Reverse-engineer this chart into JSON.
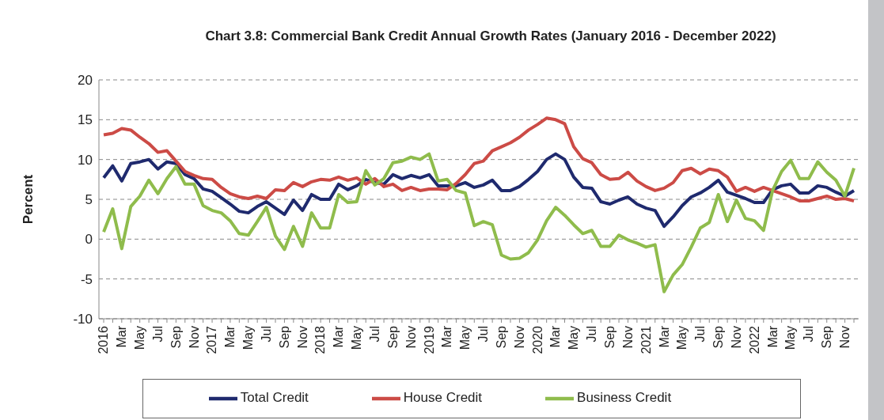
{
  "chart_data": {
    "type": "line",
    "title": "Chart 3.8: Commercial Bank Credit Annual Growth Rates (January 2016 - December 2022)",
    "ylabel": "Percent",
    "categories": [
      "2016",
      null,
      "Mar",
      null,
      "May",
      null,
      "Jul",
      null,
      "Sep",
      null,
      "Nov",
      null,
      "2017",
      null,
      "Mar",
      null,
      "May",
      null,
      "Jul",
      null,
      "Sep",
      null,
      "Nov",
      null,
      "2018",
      null,
      "Mar",
      null,
      "May",
      null,
      "Jul",
      null,
      "Sep",
      null,
      "Nov",
      null,
      "2019",
      null,
      "Mar",
      null,
      "May",
      null,
      "Jul",
      null,
      "Sep",
      null,
      "Nov",
      null,
      "2020",
      null,
      "Mar",
      null,
      "May",
      null,
      "Jul",
      null,
      "Sep",
      null,
      "Nov",
      null,
      "2021",
      null,
      "Mar",
      null,
      "May",
      null,
      "Jul",
      null,
      "Sep",
      null,
      "Nov",
      null,
      "2022",
      null,
      "Mar",
      null,
      "May",
      null,
      "Jul",
      null,
      "Sep",
      null,
      "Nov",
      null
    ],
    "series": [
      {
        "name": "Total Credit",
        "color": "#1f2a6e",
        "values": [
          7.7,
          9.2,
          7.3,
          9.5,
          9.7,
          10.0,
          8.8,
          9.7,
          9.5,
          8.1,
          7.6,
          6.3,
          6.0,
          5.2,
          4.4,
          3.5,
          3.3,
          4.1,
          4.7,
          3.9,
          3.1,
          4.9,
          3.6,
          5.6,
          5.0,
          5.0,
          6.9,
          6.2,
          6.7,
          7.5,
          7.1,
          6.9,
          8.1,
          7.6,
          8.0,
          7.7,
          8.1,
          6.7,
          6.7,
          6.7,
          7.1,
          6.5,
          6.8,
          7.4,
          6.1,
          6.1,
          6.6,
          7.5,
          8.5,
          10.0,
          10.7,
          10.0,
          7.8,
          6.5,
          6.4,
          4.7,
          4.4,
          4.9,
          5.3,
          4.4,
          3.9,
          3.6,
          1.6,
          2.8,
          4.2,
          5.3,
          5.8,
          6.5,
          7.4,
          5.9,
          5.5,
          5.1,
          4.6,
          4.6,
          6.2,
          6.7,
          6.9,
          5.8,
          5.8,
          6.7,
          6.5,
          5.9,
          5.4,
          6.1
        ]
      },
      {
        "name": "House Credit",
        "color": "#cc4b46",
        "values": [
          13.1,
          13.3,
          13.9,
          13.7,
          12.8,
          12.0,
          10.9,
          11.1,
          9.8,
          8.5,
          8.0,
          7.6,
          7.5,
          6.5,
          5.7,
          5.3,
          5.1,
          5.4,
          5.1,
          6.2,
          6.1,
          7.1,
          6.6,
          7.2,
          7.5,
          7.4,
          7.8,
          7.4,
          7.7,
          6.9,
          7.6,
          6.6,
          6.9,
          6.1,
          6.5,
          6.1,
          6.3,
          6.3,
          6.2,
          7.0,
          8.1,
          9.5,
          9.8,
          11.1,
          11.6,
          12.1,
          12.8,
          13.7,
          14.4,
          15.2,
          15.0,
          14.5,
          11.6,
          10.1,
          9.6,
          8.1,
          7.5,
          7.6,
          8.4,
          7.3,
          6.6,
          6.1,
          6.4,
          7.1,
          8.6,
          8.9,
          8.2,
          8.8,
          8.6,
          7.8,
          6.0,
          6.5,
          6.0,
          6.5,
          6.1,
          5.7,
          5.3,
          4.8,
          4.8,
          5.1,
          5.4,
          5.0,
          5.1,
          4.8
        ]
      },
      {
        "name": "Business Credit",
        "color": "#8fbc4c",
        "values": [
          0.9,
          3.8,
          -1.2,
          4.1,
          5.4,
          7.4,
          5.7,
          7.6,
          9.1,
          6.9,
          6.9,
          4.2,
          3.6,
          3.3,
          2.3,
          0.7,
          0.5,
          2.2,
          4.0,
          0.4,
          -1.3,
          1.6,
          -0.9,
          3.3,
          1.4,
          1.4,
          5.6,
          4.6,
          4.7,
          8.6,
          6.8,
          7.6,
          9.6,
          9.8,
          10.3,
          10.0,
          10.7,
          7.3,
          7.5,
          6.1,
          5.8,
          1.7,
          2.2,
          1.8,
          -2.0,
          -2.5,
          -2.4,
          -1.7,
          -0.1,
          2.3,
          4.0,
          3.0,
          1.8,
          0.7,
          1.1,
          -0.9,
          -0.9,
          0.5,
          -0.1,
          -0.5,
          -1.0,
          -0.7,
          -6.6,
          -4.5,
          -3.2,
          -1.0,
          1.4,
          2.1,
          5.6,
          2.2,
          4.9,
          2.6,
          2.3,
          1.1,
          6.1,
          8.5,
          9.9,
          7.6,
          7.6,
          9.7,
          8.4,
          7.4,
          5.4,
          8.9
        ]
      }
    ],
    "ylim": [
      -10,
      20
    ],
    "yticks": [
      -10,
      -5,
      0,
      5,
      10,
      15,
      20
    ],
    "grid": "y",
    "legend": "bottom",
    "marker": "none",
    "line_style": "solid"
  }
}
